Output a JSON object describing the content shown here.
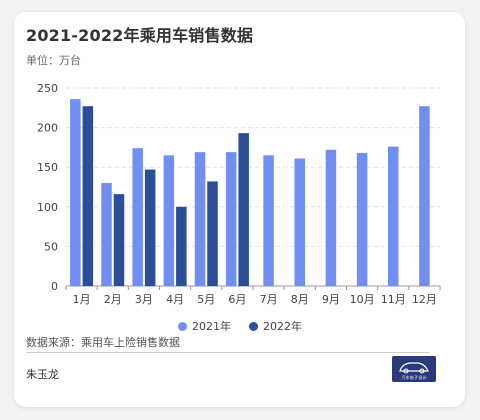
{
  "header": {
    "title": "2021-2022年乘用车销售数据",
    "unit": "单位：万台"
  },
  "footer": {
    "source": "数据来源：乘用车上险销售数据",
    "author": "朱玉龙",
    "logo_text": "汽车电子设计",
    "logo_icon": "car-logo-icon"
  },
  "colors": {
    "series_2021": "#6f8ff5",
    "series_2022": "#2c4e99",
    "grid": "#e2e2e2",
    "axis": "#999999"
  },
  "chart_data": {
    "type": "bar",
    "title": "2021-2022年乘用车销售数据",
    "ylabel": "单位：万台",
    "xlabel": "",
    "categories": [
      "1月",
      "2月",
      "3月",
      "4月",
      "5月",
      "6月",
      "7月",
      "8月",
      "9月",
      "10月",
      "11月",
      "12月"
    ],
    "series": [
      {
        "name": "2021年",
        "values": [
          236,
          130,
          174,
          165,
          169,
          169,
          165,
          161,
          172,
          168,
          176,
          227
        ]
      },
      {
        "name": "2022年",
        "values": [
          227,
          116,
          147,
          100,
          132,
          193,
          null,
          null,
          null,
          null,
          null,
          null
        ]
      }
    ],
    "ylim": [
      0,
      250
    ],
    "yticks": [
      0,
      50,
      100,
      150,
      200,
      250
    ],
    "grid": true,
    "legend": "bottom-center"
  }
}
